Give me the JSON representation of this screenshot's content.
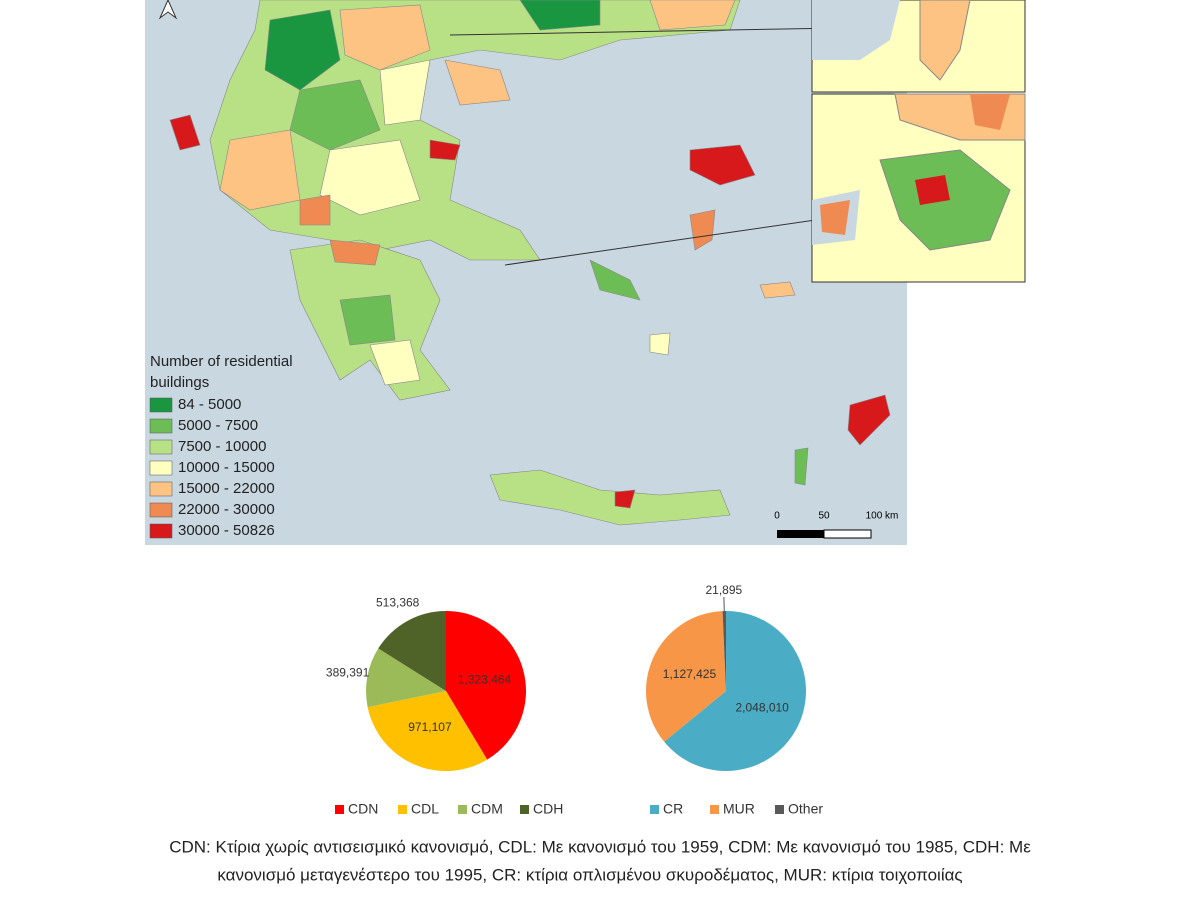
{
  "map": {
    "legend_title": [
      "Number of residential",
      "buildings"
    ],
    "legend": [
      {
        "label": "84 - 5000",
        "color": "#1a9641"
      },
      {
        "label": "5000 - 7500",
        "color": "#6cbd55"
      },
      {
        "label": "7500 - 10000",
        "color": "#b8e186"
      },
      {
        "label": "10000 - 15000",
        "color": "#ffffc0"
      },
      {
        "label": "15000 - 22000",
        "color": "#fdc382"
      },
      {
        "label": "22000 - 30000",
        "color": "#ef8a52"
      },
      {
        "label": "30000 - 50826",
        "color": "#d7191c"
      }
    ],
    "scale": [
      "0",
      "50",
      "100 km"
    ]
  },
  "chart_data": [
    {
      "type": "pie",
      "categories": [
        "CDN",
        "CDL",
        "CDM",
        "CDH"
      ],
      "values": [
        1323464,
        971107,
        389391,
        513368
      ],
      "value_labels": [
        "1,323,464",
        "971,107",
        "389,391",
        "513,368"
      ],
      "colors": [
        "#ff0000",
        "#ffc000",
        "#9bbb59",
        "#4f6228"
      ]
    },
    {
      "type": "pie",
      "categories": [
        "CR",
        "MUR",
        "Other"
      ],
      "values": [
        2048010,
        1127425,
        21895
      ],
      "value_labels": [
        "2,048,010",
        "1,127,425",
        "21,895"
      ],
      "colors": [
        "#4bacc6",
        "#f79646",
        "#595959"
      ]
    }
  ],
  "caption": [
    "CDN: Κτίρια χωρίς αντισεισμικό κανονισμό, CDL: Με κανονισμό του 1959, CDM: Με κανονισμό του 1985, CDH: Με",
    "κανονισμό μεταγενέστερο του 1995, CR: κτίρια οπλισμένου σκυροδέματος, MUR: κτίρια τοιχοποιίας"
  ]
}
